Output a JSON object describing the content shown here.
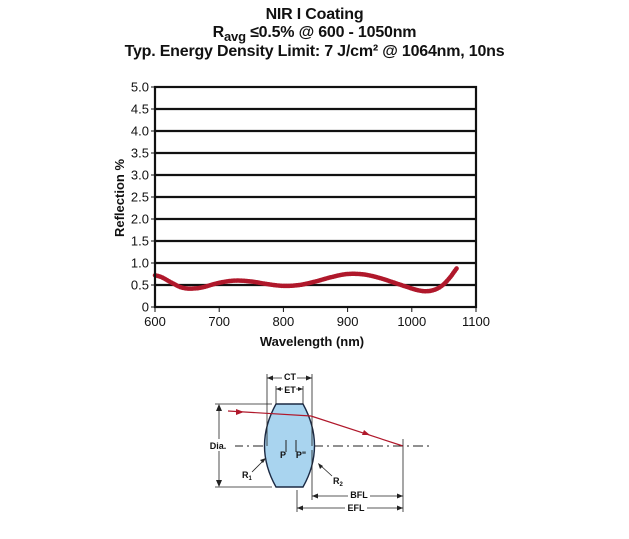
{
  "chart_data": {
    "type": "line",
    "title": "NIR I Coating",
    "subtitle_prefix": "R",
    "subtitle_subscript": "avg",
    "subtitle_rest": " ≤0.5% @ 600 - 1050nm",
    "subtitle2": "Typ. Energy Density Limit: 7 J/cm² @ 1064nm, 10ns",
    "xlabel": "Wavelength (nm)",
    "ylabel": "Reflection %",
    "xlim": [
      600,
      1100
    ],
    "ylim": [
      0,
      5.0
    ],
    "x_ticks": [
      600,
      700,
      800,
      900,
      1000,
      1100
    ],
    "x_tick_labels": [
      "600",
      "700",
      "800",
      "900",
      "1000",
      "1100"
    ],
    "y_ticks": [
      0,
      0.5,
      1.0,
      1.5,
      2.0,
      2.5,
      3.0,
      3.5,
      4.0,
      4.5,
      5.0
    ],
    "y_tick_labels": [
      "0",
      "0.5",
      "1.0",
      "1.5",
      "2.0",
      "2.5",
      "3.0",
      "3.5",
      "4.0",
      "4.5",
      "5.0"
    ],
    "grid": "horizontal",
    "series": [
      {
        "name": "Reflection",
        "color": "#b0182b",
        "x": [
          600,
          610,
          620,
          630,
          640,
          650,
          660,
          675,
          700,
          725,
          750,
          775,
          800,
          825,
          850,
          875,
          900,
          925,
          950,
          975,
          1000,
          1010,
          1020,
          1030,
          1040,
          1050,
          1060,
          1065,
          1070
        ],
        "y": [
          0.72,
          0.68,
          0.6,
          0.52,
          0.45,
          0.42,
          0.42,
          0.45,
          0.55,
          0.6,
          0.58,
          0.52,
          0.48,
          0.5,
          0.58,
          0.68,
          0.75,
          0.74,
          0.66,
          0.54,
          0.42,
          0.38,
          0.36,
          0.37,
          0.42,
          0.52,
          0.68,
          0.78,
          0.88
        ]
      }
    ]
  },
  "diagram": {
    "labels": {
      "ct": "CT",
      "et": "ET",
      "dia": "Dia.",
      "p": "P",
      "p_prime": "P\"",
      "r1": "R",
      "r1_sub": "1",
      "r2": "R",
      "r2_sub": "2",
      "bfl": "BFL",
      "efl": "EFL"
    },
    "colors": {
      "lens_fill": "#a9d4ef",
      "lens_stroke": "#1c2a44",
      "ray": "#b0182b"
    }
  }
}
